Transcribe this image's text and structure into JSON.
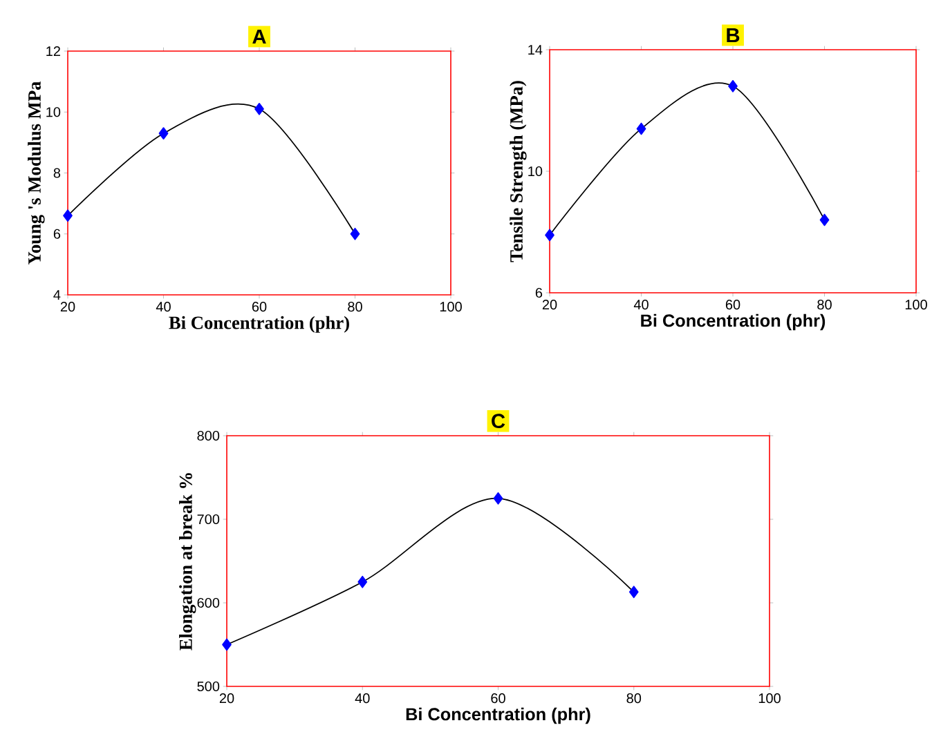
{
  "chart_data": [
    {
      "type": "line",
      "title": "A",
      "xlabel": "Bi Concentration  (phr)",
      "ylabel": "Young 's Modulus MPa",
      "x": [
        20,
        40,
        60,
        80
      ],
      "series": [
        {
          "color": "#0000ff",
          "values": [
            6.6,
            9.3,
            10.1,
            6.0
          ]
        }
      ],
      "xlim": [
        20,
        100
      ],
      "xticks": [
        20,
        40,
        60,
        80,
        100
      ],
      "ylim": [
        4,
        12
      ],
      "yticks": [
        4,
        6,
        8,
        10,
        12
      ],
      "marker": "diamond",
      "line_style": "solid"
    },
    {
      "type": "line",
      "title": "B",
      "xlabel": "Bi Concentration  (phr)",
      "ylabel": "Tensile Strength (MPa)",
      "x": [
        20,
        40,
        60,
        80
      ],
      "series": [
        {
          "color": "#0000ff",
          "values": [
            7.9,
            11.4,
            12.8,
            8.4
          ]
        }
      ],
      "xlim": [
        20,
        100
      ],
      "xticks": [
        20,
        40,
        60,
        80,
        100
      ],
      "ylim": [
        6,
        14
      ],
      "yticks": [
        6,
        10,
        14
      ],
      "marker": "diamond",
      "line_style": "solid"
    },
    {
      "type": "line",
      "title": "C",
      "xlabel": "Bi Concentration  (phr)",
      "ylabel": "Elongation at break %",
      "x": [
        20,
        40,
        60,
        80
      ],
      "series": [
        {
          "color": "#0000ff",
          "values": [
            550,
            625,
            725,
            613
          ]
        }
      ],
      "xlim": [
        20,
        100
      ],
      "xticks": [
        20,
        40,
        60,
        80,
        100
      ],
      "ylim": [
        500,
        800
      ],
      "yticks": [
        500,
        600,
        700,
        800
      ],
      "marker": "diamond",
      "line_style": "solid"
    }
  ]
}
